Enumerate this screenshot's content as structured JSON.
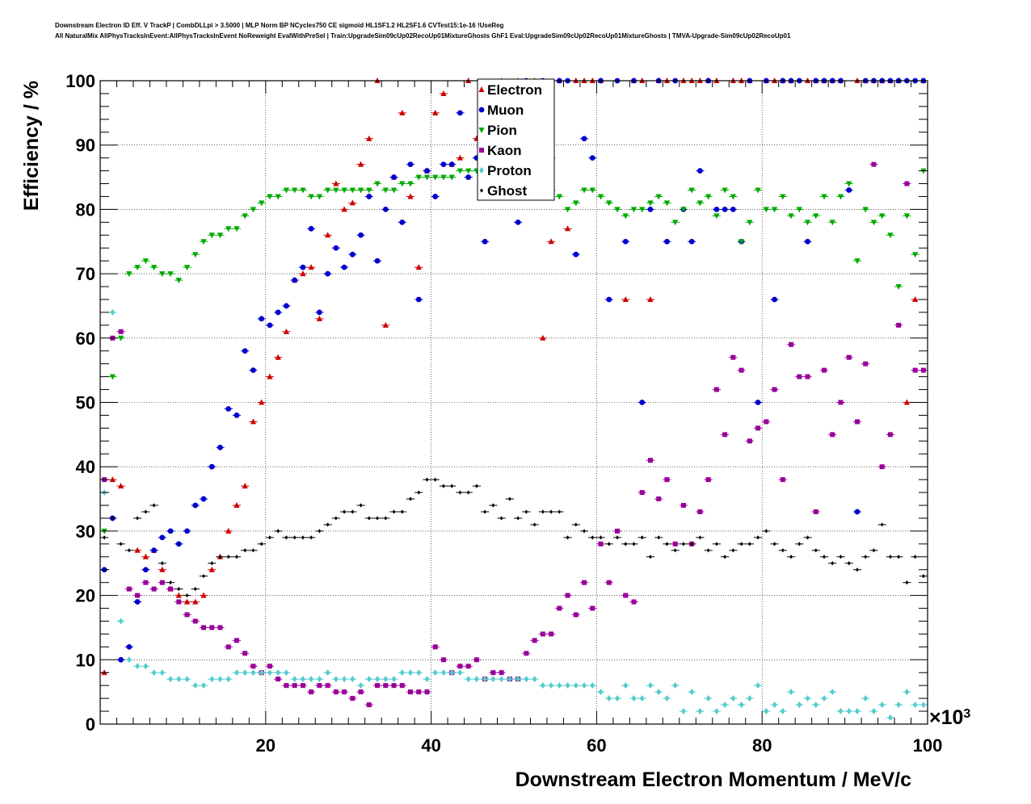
{
  "header": {
    "line1": "Downstream Electron ID Eff. V TrackP | CombDLLpi > 3.5000 | MLP Norm BP NCycles750 CE sigmoid HL1SF1.2 HL2SF1.6 CVTest15:1e-16 !UseReg",
    "line2": "All NaturalMix AllPhysTracksInEvent:AllPhysTracksInEvent NoReweight EvalWithPreSel | Train:UpgradeSim09cUp02RecoUp01MixtureGhosts GhF1 Eval:UpgradeSim09cUp02RecoUp01MixtureGhosts | TMVA-Upgrade-Sim09cUp02RecoUp01"
  },
  "chart_data": {
    "type": "scatter",
    "xlabel": "Downstream Electron Momentum / MeV/c",
    "ylabel": "Efficiency / %",
    "x_multiplier": "×10",
    "x_multiplier_exp": "3",
    "xlim": [
      0,
      100
    ],
    "ylim": [
      0,
      100
    ],
    "xticks": [
      20,
      40,
      60,
      80,
      100
    ],
    "yticks": [
      0,
      10,
      20,
      30,
      40,
      50,
      60,
      70,
      80,
      90,
      100
    ],
    "grid": true,
    "legend_position": "top-center",
    "x_points": [
      1,
      2,
      3,
      4,
      5,
      6,
      7,
      8,
      9,
      10,
      11,
      12,
      13,
      14,
      15,
      16,
      17,
      18,
      19,
      20,
      21,
      22,
      23,
      24,
      25,
      26,
      27,
      28,
      29,
      30,
      31,
      32,
      33,
      34,
      35,
      36,
      37,
      38,
      39,
      40,
      41,
      42,
      43,
      44,
      45,
      46,
      47,
      48,
      49,
      50,
      51,
      52,
      53,
      54,
      55,
      56,
      57,
      58,
      59,
      60,
      61,
      62,
      63,
      64,
      65,
      66,
      67,
      68,
      69,
      70,
      71,
      72,
      73,
      74,
      75,
      76,
      77,
      78,
      79,
      80,
      81,
      82,
      83,
      84,
      85,
      86,
      87,
      88,
      89,
      90,
      91,
      92,
      93,
      94,
      95,
      96,
      97,
      98,
      99,
      100
    ],
    "series": [
      {
        "name": "Electron",
        "color": "#cc0000",
        "marker": "triangle-up",
        "values": [
          8,
          38,
          37,
          null,
          27,
          26,
          27,
          24,
          21,
          20,
          19,
          19,
          20,
          24,
          26,
          30,
          34,
          37,
          47,
          50,
          54,
          57,
          61,
          69,
          70,
          71,
          63,
          76,
          84,
          80,
          81,
          87,
          91,
          100,
          62,
          85,
          95,
          82,
          71,
          86,
          95,
          98,
          87,
          88,
          100,
          91,
          87,
          86,
          100,
          93,
          100,
          null,
          100,
          60,
          75,
          100,
          77,
          100,
          100,
          100,
          100,
          null,
          null,
          66,
          100,
          100,
          66,
          100,
          100,
          null,
          100,
          100,
          100,
          100,
          100,
          null,
          100,
          100,
          100,
          null,
          100,
          100,
          100,
          100,
          null,
          100,
          100,
          100,
          100,
          100,
          null,
          100,
          100,
          100,
          100,
          100,
          100,
          50,
          66,
          100
        ]
      },
      {
        "name": "Muon",
        "color": "#0000cc",
        "marker": "circle",
        "values": [
          24,
          32,
          10,
          12,
          19,
          24,
          27,
          29,
          30,
          28,
          30,
          34,
          35,
          40,
          43,
          49,
          48,
          58,
          55,
          63,
          62,
          64,
          65,
          69,
          71,
          77,
          64,
          70,
          74,
          71,
          73,
          76,
          82,
          72,
          80,
          85,
          78,
          87,
          66,
          86,
          82,
          87,
          87,
          95,
          85,
          88,
          75,
          83,
          84,
          91,
          78,
          100,
          87,
          100,
          88,
          100,
          100,
          73,
          91,
          88,
          100,
          66,
          100,
          75,
          100,
          50,
          80,
          100,
          75,
          100,
          80,
          75,
          86,
          100,
          80,
          80,
          80,
          75,
          100,
          50,
          100,
          66,
          100,
          100,
          100,
          75,
          100,
          100,
          100,
          100,
          83,
          33,
          100,
          100,
          100,
          100,
          100,
          100,
          100,
          100
        ]
      },
      {
        "name": "Pion",
        "color": "#00aa00",
        "marker": "triangle-down",
        "values": [
          30,
          54,
          60,
          70,
          71,
          72,
          71,
          70,
          70,
          69,
          71,
          73,
          75,
          76,
          76,
          77,
          77,
          79,
          80,
          81,
          82,
          82,
          83,
          83,
          83,
          82,
          82,
          83,
          83,
          83,
          83,
          83,
          83,
          84,
          83,
          83,
          84,
          84,
          85,
          85,
          85,
          85,
          85,
          86,
          86,
          86,
          85,
          85,
          84,
          83,
          83,
          84,
          84,
          84,
          83,
          82,
          80,
          81,
          83,
          83,
          82,
          81,
          80,
          79,
          80,
          80,
          81,
          82,
          81,
          78,
          80,
          83,
          81,
          82,
          79,
          83,
          82,
          75,
          78,
          83,
          80,
          80,
          82,
          79,
          80,
          78,
          79,
          82,
          78,
          82,
          84,
          72,
          80,
          78,
          79,
          76,
          68,
          79,
          73,
          86
        ]
      },
      {
        "name": "Kaon",
        "color": "#990099",
        "marker": "square",
        "values": [
          38,
          60,
          61,
          21,
          20,
          22,
          21,
          22,
          21,
          19,
          17,
          16,
          15,
          15,
          15,
          12,
          13,
          11,
          9,
          8,
          9,
          7,
          6,
          6,
          6,
          5,
          6,
          6,
          5,
          5,
          4,
          5,
          3,
          6,
          6,
          6,
          6,
          5,
          5,
          5,
          12,
          10,
          8,
          9,
          9,
          10,
          7,
          8,
          8,
          7,
          7,
          11,
          13,
          14,
          14,
          18,
          20,
          17,
          22,
          18,
          28,
          22,
          30,
          20,
          19,
          36,
          41,
          35,
          38,
          28,
          34,
          28,
          33,
          38,
          52,
          45,
          57,
          55,
          44,
          46,
          47,
          52,
          38,
          59,
          54,
          54,
          33,
          55,
          45,
          50,
          57,
          47,
          56,
          87,
          40,
          45,
          62,
          84,
          55,
          55
        ]
      },
      {
        "name": "Proton",
        "color": "#55cccc",
        "marker": "diamond",
        "values": [
          36,
          64,
          16,
          10,
          9,
          9,
          8,
          8,
          7,
          7,
          7,
          6,
          6,
          7,
          7,
          7,
          8,
          8,
          8,
          8,
          8,
          8,
          8,
          7,
          7,
          7,
          7,
          8,
          7,
          7,
          7,
          6,
          7,
          7,
          7,
          7,
          8,
          8,
          8,
          7,
          8,
          8,
          8,
          8,
          7,
          7,
          7,
          7,
          7,
          7,
          7,
          7,
          7,
          6,
          6,
          6,
          6,
          6,
          6,
          6,
          5,
          4,
          4,
          6,
          4,
          4,
          6,
          5,
          4,
          6,
          2,
          5,
          2,
          4,
          2,
          3,
          4,
          3,
          4,
          6,
          2,
          3,
          2,
          5,
          3,
          4,
          3,
          4,
          5,
          2,
          2,
          2,
          4,
          2,
          3,
          1,
          3,
          5,
          3,
          3
        ]
      },
      {
        "name": "Ghost",
        "color": "#000000",
        "marker": "small-diamond",
        "values": [
          29,
          32,
          28,
          27,
          32,
          33,
          34,
          25,
          22,
          21,
          20,
          21,
          23,
          25,
          26,
          26,
          26,
          27,
          27,
          28,
          29,
          30,
          29,
          29,
          29,
          29,
          30,
          31,
          32,
          33,
          33,
          34,
          32,
          32,
          32,
          33,
          33,
          35,
          36,
          38,
          38,
          37,
          37,
          36,
          36,
          37,
          33,
          34,
          32,
          35,
          32,
          33,
          31,
          33,
          33,
          33,
          29,
          31,
          30,
          29,
          29,
          28,
          29,
          28,
          28,
          29,
          26,
          29,
          28,
          27,
          28,
          28,
          29,
          27,
          28,
          26,
          27,
          28,
          28,
          29,
          30,
          28,
          27,
          26,
          28,
          29,
          27,
          26,
          25,
          26,
          25,
          24,
          26,
          27,
          31,
          26,
          26,
          22,
          26,
          23
        ]
      }
    ]
  }
}
